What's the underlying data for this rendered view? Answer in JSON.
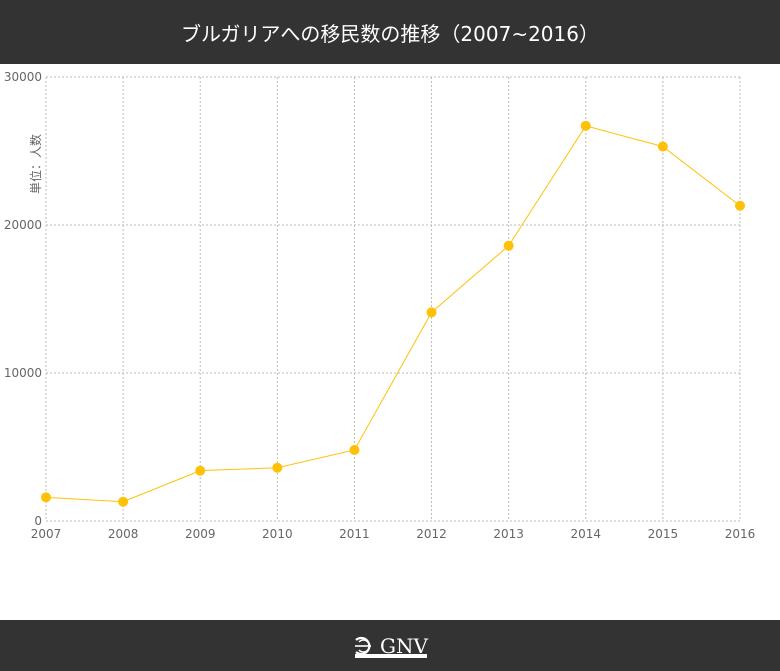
{
  "header": {
    "title": "ブルガリアへの移民数の推移（2007~2016）"
  },
  "footer": {
    "logo_text": "GNV",
    "logo_icon": "globe-icon"
  },
  "colors": {
    "series": "#FFC107",
    "header_bg": "#333333",
    "grid": "#BBBBBB",
    "axis_text": "#666666"
  },
  "chart_data": {
    "type": "line",
    "title": "ブルガリアへの移民数の推移（2007~2016）",
    "ylabel": "単位：人数",
    "xlabel": "",
    "x": [
      "2007",
      "2008",
      "2009",
      "2010",
      "2011",
      "2012",
      "2013",
      "2014",
      "2015",
      "2016"
    ],
    "series": [
      {
        "values": [
          1600,
          1300,
          3400,
          3600,
          4800,
          14100,
          18600,
          26700,
          25300,
          21300
        ]
      }
    ],
    "ylim": [
      0,
      30000
    ],
    "yticks": [
      "0",
      "10000",
      "20000",
      "30000"
    ],
    "grid": true,
    "legend": "none"
  }
}
